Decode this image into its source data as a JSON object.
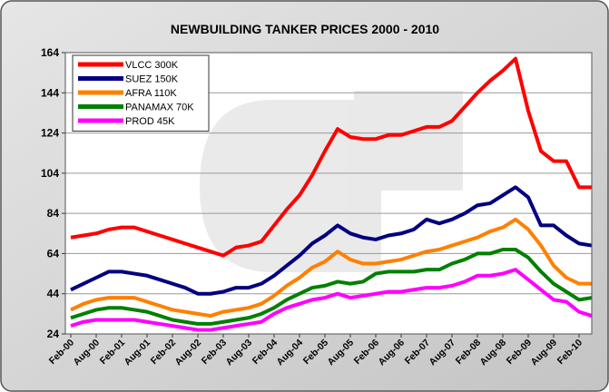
{
  "chart_data": {
    "type": "line",
    "title": "NEWBUILDING TANKER PRICES 2000 - 2010",
    "categories": [
      "Feb-00",
      null,
      "Aug-00",
      null,
      "Feb-01",
      null,
      "Aug-01",
      null,
      "Feb-02",
      null,
      "Aug-02",
      null,
      "Feb-03",
      null,
      "Aug-03",
      null,
      "Feb-04",
      null,
      "Aug-04",
      null,
      "Feb-05",
      null,
      "Aug-05",
      null,
      "Feb-06",
      null,
      "Aug-06",
      null,
      "Feb-07",
      null,
      "Aug-07",
      null,
      "Feb-08",
      null,
      "Aug-08",
      null,
      "Feb-09",
      null,
      "Aug-09",
      null,
      "Feb-10",
      null
    ],
    "series": [
      {
        "name": "VLCC 300K",
        "color": "#ff0000",
        "values": [
          72,
          73,
          74,
          76,
          77,
          77,
          75,
          73,
          71,
          69,
          67,
          65,
          63,
          67,
          68,
          70,
          78,
          86,
          93,
          103,
          115,
          126,
          122,
          121,
          121,
          123,
          123,
          125,
          127,
          127,
          130,
          137,
          144,
          150,
          155,
          161,
          135,
          115,
          110,
          110,
          97,
          97
        ]
      },
      {
        "name": "SUEZ 150K",
        "color": "#000080",
        "values": [
          46,
          49,
          52,
          55,
          55,
          54,
          53,
          51,
          49,
          47,
          44,
          44,
          45,
          47,
          47,
          49,
          53,
          58,
          63,
          69,
          73,
          78,
          74,
          72,
          71,
          73,
          74,
          76,
          81,
          79,
          81,
          84,
          88,
          89,
          93,
          97,
          92,
          78,
          78,
          73,
          69,
          68
        ]
      },
      {
        "name": "AFRA 110K",
        "color": "#ff8000",
        "values": [
          36,
          39,
          41,
          42,
          42,
          42,
          40,
          38,
          36,
          35,
          34,
          33,
          35,
          36,
          37,
          39,
          43,
          48,
          52,
          57,
          60,
          65,
          61,
          59,
          59,
          60,
          61,
          63,
          65,
          66,
          68,
          70,
          72,
          75,
          77,
          81,
          76,
          68,
          58,
          52,
          49,
          49
        ]
      },
      {
        "name": "PANAMAX 70K",
        "color": "#008000",
        "values": [
          32,
          34,
          36,
          37,
          37,
          36,
          35,
          33,
          31,
          30,
          29,
          29,
          30,
          31,
          32,
          34,
          37,
          41,
          44,
          47,
          48,
          50,
          49,
          50,
          54,
          55,
          55,
          55,
          56,
          56,
          59,
          61,
          64,
          64,
          66,
          66,
          62,
          55,
          49,
          45,
          41,
          42
        ]
      },
      {
        "name": "PROD 45K",
        "color": "#ff00ff",
        "values": [
          28,
          30,
          31,
          31,
          31,
          31,
          30,
          29,
          28,
          27,
          26,
          26,
          27,
          28,
          29,
          30,
          34,
          37,
          39,
          41,
          42,
          44,
          42,
          43,
          44,
          45,
          45,
          46,
          47,
          47,
          48,
          50,
          53,
          53,
          54,
          56,
          51,
          46,
          41,
          40,
          35,
          33
        ]
      }
    ],
    "ylim": [
      24,
      164
    ],
    "yticks": [
      24,
      44,
      64,
      84,
      104,
      124,
      144,
      164
    ],
    "grid": true,
    "legend": "upper left"
  }
}
